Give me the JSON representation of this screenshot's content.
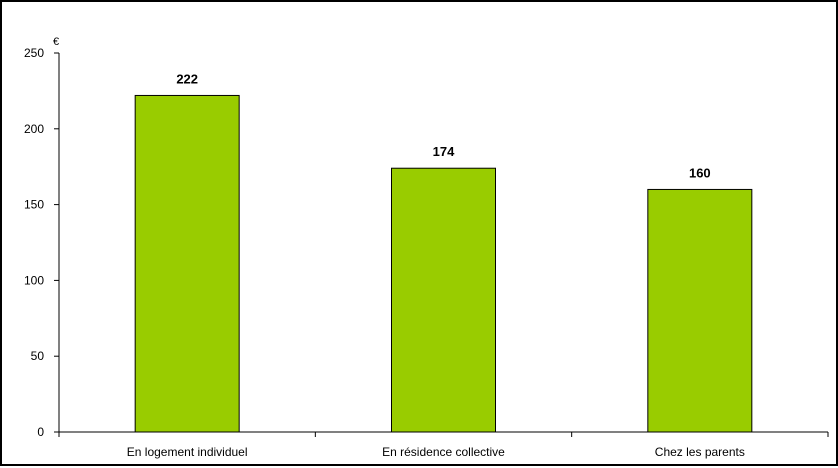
{
  "chart_data": {
    "type": "bar",
    "categories": [
      "En logement individuel",
      "En résidence collective",
      "Chez les parents"
    ],
    "values": [
      222,
      174,
      160
    ],
    "data_labels": [
      "222",
      "174",
      "160"
    ],
    "title": "",
    "xlabel": "",
    "ylabel": "€",
    "ylim": [
      0,
      250
    ],
    "yticks": [
      0,
      50,
      100,
      150,
      200,
      250
    ],
    "ytick_labels": [
      "0",
      "50",
      "100",
      "150",
      "200",
      "250"
    ],
    "grid": false,
    "legend": "none",
    "bar_color": "#99cc00",
    "bar_border_color": "#000000"
  }
}
